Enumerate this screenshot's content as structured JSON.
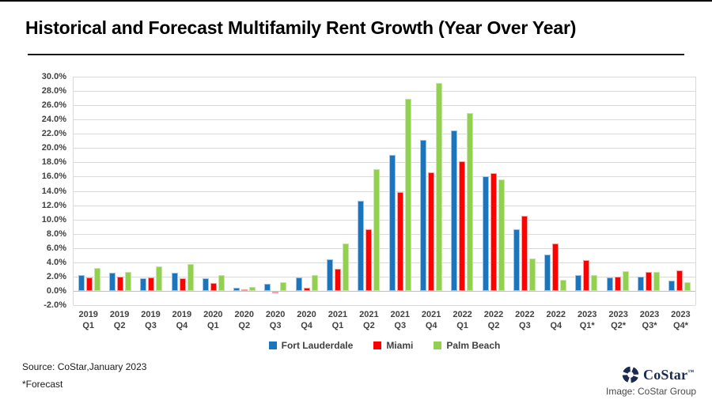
{
  "footer": {
    "source": "Source: CoStar,January 2023",
    "forecast_note": "*Forecast",
    "image_credit": "Image: CoStar Group",
    "logo_text": "CoStar",
    "logo_tm": "™"
  },
  "chart_data": {
    "type": "bar",
    "title": "Historical and Forecast Multifamily Rent Growth (Year Over Year)",
    "categories": [
      {
        "year": "2019",
        "quarter": "Q1"
      },
      {
        "year": "2019",
        "quarter": "Q2"
      },
      {
        "year": "2019",
        "quarter": "Q3"
      },
      {
        "year": "2019",
        "quarter": "Q4"
      },
      {
        "year": "2020",
        "quarter": "Q1"
      },
      {
        "year": "2020",
        "quarter": "Q2"
      },
      {
        "year": "2020",
        "quarter": "Q3"
      },
      {
        "year": "2020",
        "quarter": "Q4"
      },
      {
        "year": "2021",
        "quarter": "Q1"
      },
      {
        "year": "2021",
        "quarter": "Q2"
      },
      {
        "year": "2021",
        "quarter": "Q3"
      },
      {
        "year": "2021",
        "quarter": "Q4"
      },
      {
        "year": "2022",
        "quarter": "Q1"
      },
      {
        "year": "2022",
        "quarter": "Q2"
      },
      {
        "year": "2022",
        "quarter": "Q3"
      },
      {
        "year": "2022",
        "quarter": "Q4"
      },
      {
        "year": "2023",
        "quarter": "Q1*"
      },
      {
        "year": "2023",
        "quarter": "Q2*"
      },
      {
        "year": "2023",
        "quarter": "Q3*"
      },
      {
        "year": "2023",
        "quarter": "Q4*"
      }
    ],
    "series": [
      {
        "name": "Fort Lauderdale",
        "color": "#1B75BC",
        "border": "#9CC3E5",
        "values": [
          2.3,
          2.6,
          1.9,
          2.6,
          1.9,
          0.6,
          1.1,
          2.0,
          4.5,
          12.7,
          19.1,
          21.3,
          22.6,
          16.2,
          8.7,
          5.2,
          2.3,
          2.0,
          2.1,
          1.6
        ]
      },
      {
        "name": "Miami",
        "color": "#FE0000",
        "border": "#FF9D9D",
        "values": [
          2.0,
          2.1,
          2.0,
          1.9,
          1.2,
          0.2,
          -0.3,
          0.5,
          3.2,
          8.7,
          13.9,
          16.7,
          18.3,
          16.6,
          10.6,
          6.8,
          4.4,
          2.1,
          2.8,
          3.0
        ]
      },
      {
        "name": "Palm Beach",
        "color": "#92D050",
        "border": "#C9E6A8",
        "values": [
          3.3,
          2.8,
          3.5,
          3.9,
          2.3,
          0.7,
          1.3,
          2.3,
          6.7,
          17.2,
          27.0,
          29.2,
          25.0,
          15.7,
          4.6,
          1.7,
          2.3,
          2.9,
          2.8,
          1.3
        ]
      }
    ],
    "ylim": [
      -2,
      30
    ],
    "ytick_step": 2,
    "ytick_labels": [
      "30.0%",
      "28.0%",
      "26.0%",
      "24.0%",
      "22.0%",
      "20.0%",
      "18.0%",
      "16.0%",
      "14.0%",
      "12.0%",
      "10.0%",
      "8.0%",
      "6.0%",
      "4.0%",
      "2.0%",
      "0.0%",
      "-2.0%"
    ],
    "grid": true,
    "legend_position": "bottom"
  }
}
